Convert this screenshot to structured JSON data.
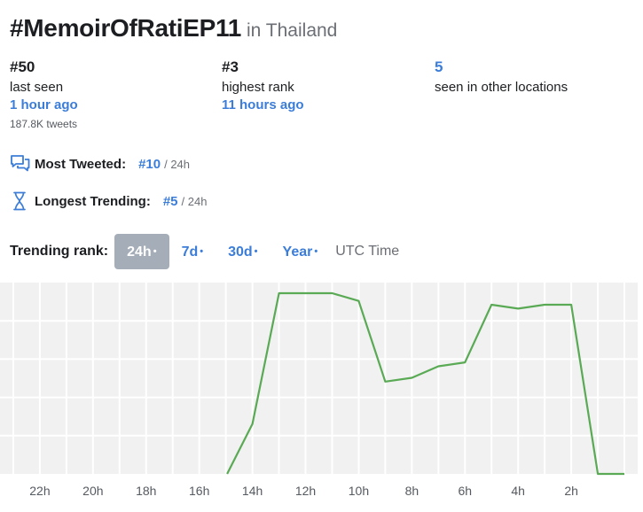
{
  "header": {
    "hashtag": "#MemoirOfRatiEP11",
    "location": "in Thailand"
  },
  "stats": {
    "current": {
      "value": "#50",
      "label": "last seen",
      "time": "1 hour ago",
      "tweets": "187.8K tweets"
    },
    "highest": {
      "value": "#3",
      "label": "highest rank",
      "time": "11 hours ago"
    },
    "other": {
      "value": "5",
      "label": "seen in other locations"
    }
  },
  "metrics": {
    "most_tweeted": {
      "label": "Most Tweeted:",
      "rank": "#10",
      "period": "/ 24h",
      "icon": "chat-bubbles-icon"
    },
    "longest_trending": {
      "label": "Longest Trending:",
      "rank": "#5",
      "period": "/ 24h",
      "icon": "hourglass-icon"
    }
  },
  "tabs": {
    "label": "Trending rank:",
    "items": [
      {
        "label": "24h",
        "dot": "•",
        "active": true
      },
      {
        "label": "7d",
        "dot": "•",
        "active": false
      },
      {
        "label": "30d",
        "dot": "•",
        "active": false
      },
      {
        "label": "Year",
        "dot": "•",
        "active": false
      }
    ],
    "utc": "UTC Time"
  },
  "colors": {
    "accent": "#3b7dd8",
    "line": "#5aaa55",
    "grid_bg": "#f1f1f1",
    "active_tab": "#a4adb8"
  },
  "chart_data": {
    "type": "line",
    "x_tick_labels": [
      "22h",
      "20h",
      "18h",
      "16h",
      "14h",
      "12h",
      "10h",
      "8h",
      "6h",
      "4h",
      "2h"
    ],
    "x_tick_hours_ago": [
      22,
      20,
      18,
      16,
      14,
      12,
      10,
      8,
      6,
      4,
      2
    ],
    "xlim_hours_ago": [
      23.5,
      -0.5
    ],
    "ylim_rank": [
      50,
      3
    ],
    "series": [
      {
        "points": [
          {
            "hours_ago": 14.95,
            "rank": 50
          },
          {
            "hours_ago": 14.0,
            "rank": 37
          },
          {
            "hours_ago": 13.0,
            "rank": 3
          },
          {
            "hours_ago": 12.0,
            "rank": 3
          },
          {
            "hours_ago": 11.0,
            "rank": 3
          },
          {
            "hours_ago": 10.0,
            "rank": 5
          },
          {
            "hours_ago": 9.0,
            "rank": 26
          },
          {
            "hours_ago": 8.0,
            "rank": 25
          },
          {
            "hours_ago": 7.0,
            "rank": 22
          },
          {
            "hours_ago": 6.0,
            "rank": 21
          },
          {
            "hours_ago": 5.0,
            "rank": 6
          },
          {
            "hours_ago": 4.0,
            "rank": 7
          },
          {
            "hours_ago": 3.0,
            "rank": 6
          },
          {
            "hours_ago": 2.0,
            "rank": 6
          },
          {
            "hours_ago": 1.0,
            "rank": 50
          },
          {
            "hours_ago": 0.0,
            "rank": 50
          }
        ]
      }
    ],
    "grid": true
  }
}
